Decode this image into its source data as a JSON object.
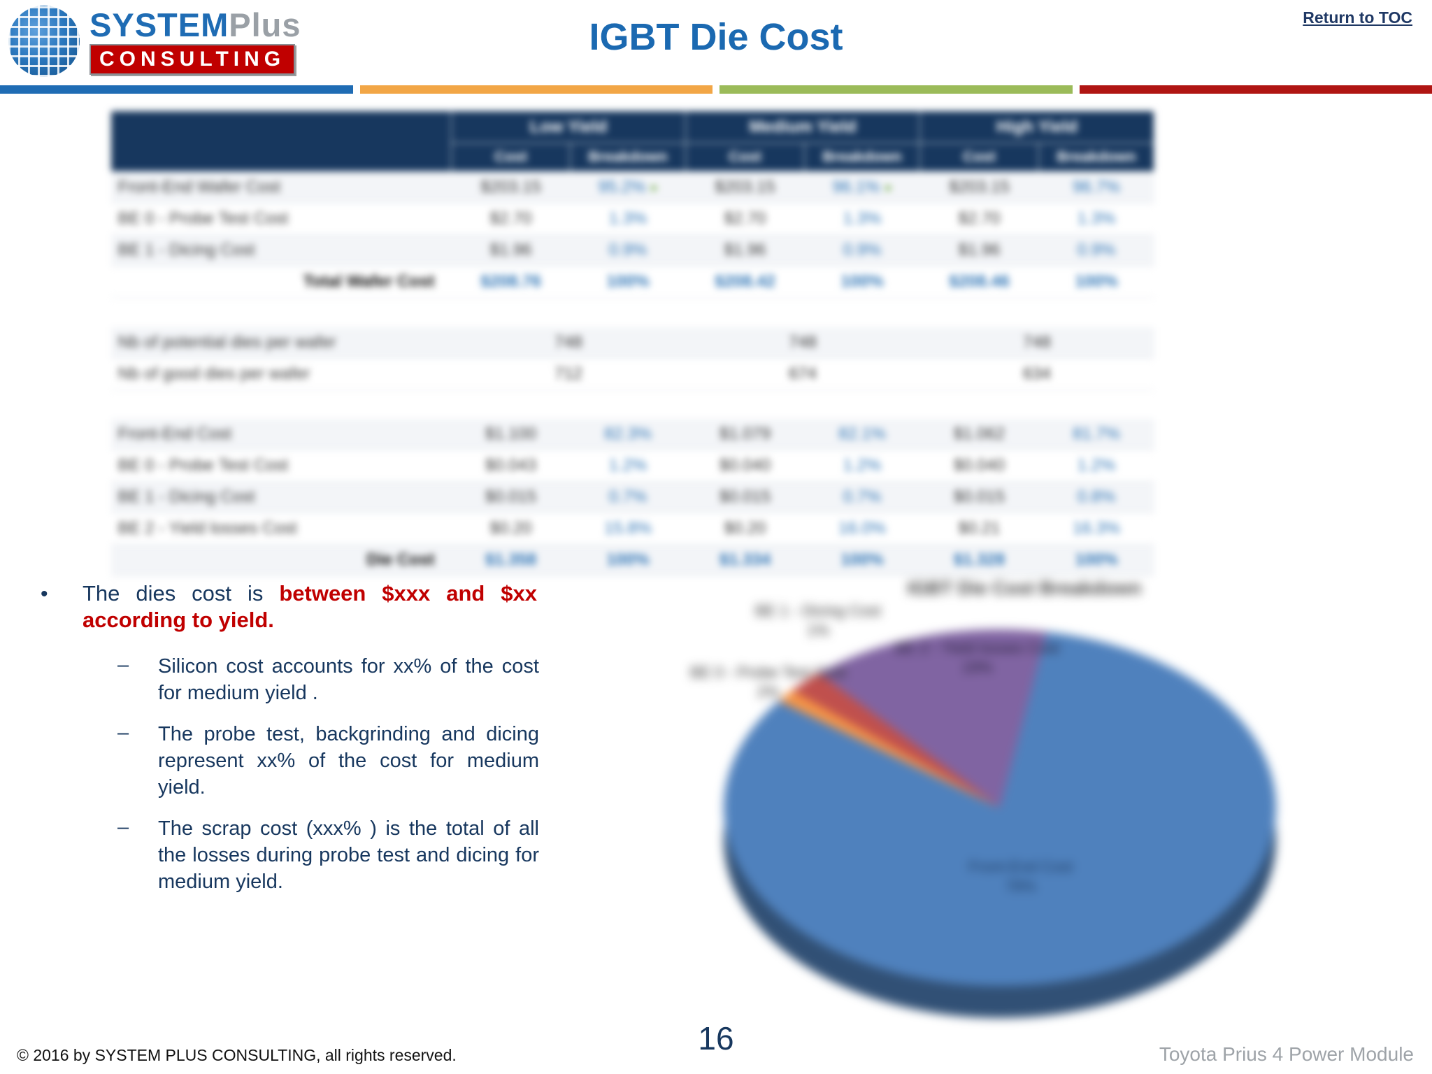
{
  "theme": {
    "colors": {
      "title-blue": "#1B69B1",
      "navy": "#17375E",
      "red": "#C00000",
      "table-header": "#17375E",
      "link-navy": "#1F3864"
    },
    "accent_bars": [
      "#1F6CB4",
      "#F2A646",
      "#9BBB59",
      "#B01513"
    ]
  },
  "header": {
    "logo": {
      "name_bold": "SYSTEM",
      "name_light": "Plus",
      "subtitle": "CONSULTING"
    },
    "title": "IGBT Die Cost",
    "return_link": "Return to TOC"
  },
  "table": {
    "col_groups": [
      {
        "name": "Low Yield"
      },
      {
        "name": "Medium Yield"
      },
      {
        "name": "High Yield"
      }
    ],
    "sub_headers": [
      "Cost",
      "Breakdown"
    ],
    "rows": [
      {
        "type": "data",
        "label": "Front-End Wafer Cost",
        "cells": [
          "$203.15",
          "95.2%",
          "$203.15",
          "96.1%",
          "$203.15",
          "96.7%"
        ],
        "markers": [
          1,
          3
        ]
      },
      {
        "type": "data",
        "label": "BE 0 - Probe Test Cost",
        "cells": [
          "$2.70",
          "1.3%",
          "$2.70",
          "1.3%",
          "$2.70",
          "1.3%"
        ]
      },
      {
        "type": "data",
        "label": "BE 1 - Dicing Cost",
        "cells": [
          "$1.96",
          "0.9%",
          "$1.96",
          "0.9%",
          "$1.96",
          "0.9%"
        ]
      },
      {
        "type": "total",
        "label": "Total Wafer Cost",
        "cells": [
          "$208.76",
          "100%",
          "$208.42",
          "100%",
          "$208.46",
          "100%"
        ]
      },
      {
        "type": "spacer"
      },
      {
        "type": "group",
        "label": "Nb of potential dies per wafer",
        "cells": [
          "748",
          "748",
          "748"
        ],
        "bold": true
      },
      {
        "type": "group",
        "label": "Nb of good dies per wafer",
        "cells": [
          "712",
          "674",
          "634"
        ],
        "bold": false
      },
      {
        "type": "spacer"
      },
      {
        "type": "data",
        "label": "Front-End Cost",
        "cells": [
          "$1.100",
          "82.3%",
          "$1.079",
          "82.1%",
          "$1.062",
          "81.7%"
        ]
      },
      {
        "type": "data",
        "label": "BE 0 - Probe Test Cost",
        "cells": [
          "$0.043",
          "1.2%",
          "$0.040",
          "1.2%",
          "$0.040",
          "1.2%"
        ]
      },
      {
        "type": "data",
        "label": "BE 1 - Dicing Cost",
        "cells": [
          "$0.015",
          "0.7%",
          "$0.015",
          "0.7%",
          "$0.015",
          "0.8%"
        ]
      },
      {
        "type": "data",
        "label": "BE 2 - Yield losses Cost",
        "cells": [
          "$0.20",
          "15.8%",
          "$0.20",
          "16.0%",
          "$0.21",
          "16.3%"
        ]
      },
      {
        "type": "total",
        "label": "Die Cost",
        "cells": [
          "$1.358",
          "100%",
          "$1.334",
          "100%",
          "$1.328",
          "100%"
        ]
      }
    ]
  },
  "bullets": {
    "main": {
      "prefix": "The dies cost is ",
      "highlight": "between $xxx and $xx according to yield."
    },
    "subs": [
      "Silicon cost accounts for xx% of the cost for medium yield .",
      "The probe test, backgrinding and dicing represent xx% of the cost for medium yield.",
      "The scrap cost (xxx% ) is the total of all the losses during probe test and dicing for medium yield."
    ]
  },
  "chart_data": {
    "type": "pie",
    "title": "IGBT Die Cost Breakdown",
    "labels": [
      "Front-End Cost",
      "BE 1 - Dicing Cost",
      "BE 0 - Probe Test Cost",
      "BE 2 - Yield losses Cost"
    ],
    "values": [
      78,
      1,
      2,
      19
    ],
    "colors": [
      "#4F81BD",
      "#F79646",
      "#C0504D",
      "#8064A2"
    ],
    "start_angle_deg": 15,
    "legend_position": "none"
  },
  "chart_labels": [
    {
      "text": "BE 1 - Dicing Cost",
      "value": "1%"
    },
    {
      "text": "BE 0 - Probe Test Cost",
      "value": "2%"
    },
    {
      "text": "BE 2 - Yield losses Cost",
      "value": "19%"
    },
    {
      "text": "Front-End Cost",
      "value": "78%"
    }
  ],
  "footer": {
    "copyright": "© 2016 by SYSTEM PLUS CONSULTING, all rights reserved.",
    "page_number": "16",
    "project": "Toyota Prius 4 Power Module"
  }
}
